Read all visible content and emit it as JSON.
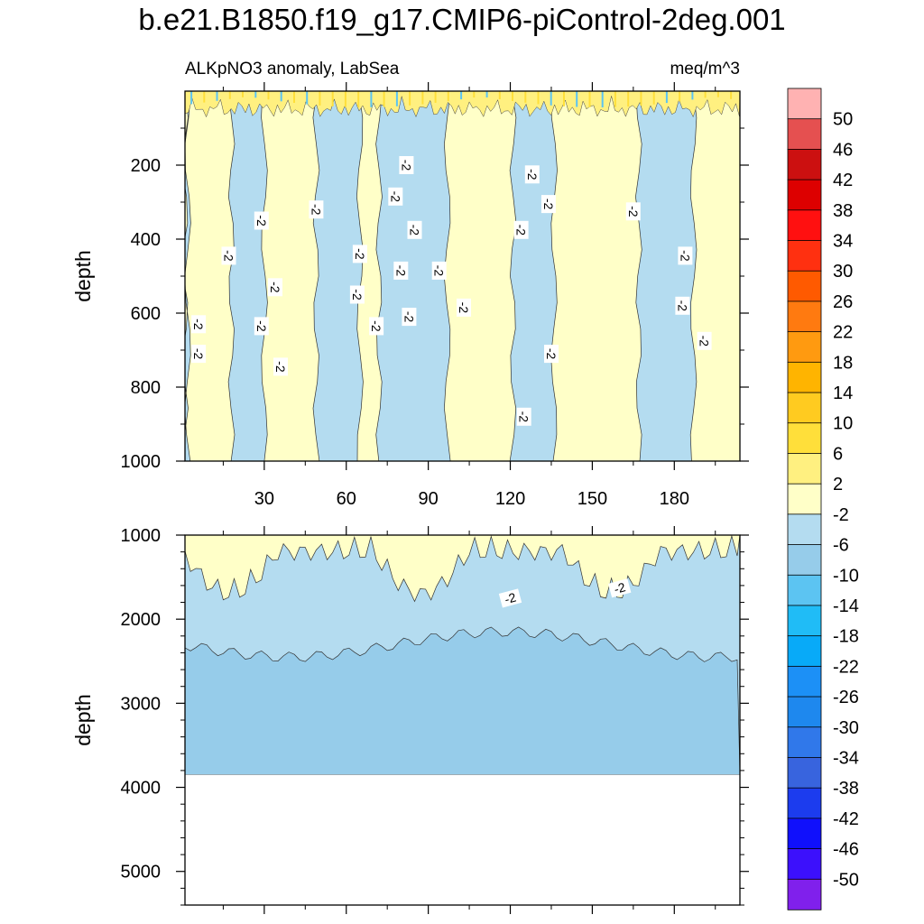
{
  "figure": {
    "title": "b.e21.B1850.f19_g17.CMIP6-piControl-2deg.001",
    "subtitle_left": "ALKpNO3 anomaly, LabSea",
    "subtitle_right": "meq/m^3"
  },
  "chart_data": [
    {
      "type": "heatmap",
      "panel": "upper",
      "ylabel": "depth",
      "xlim": [
        1,
        204
      ],
      "ylim": [
        1000,
        0
      ],
      "x_ticks": [
        30,
        60,
        90,
        120,
        150,
        180
      ],
      "y_ticks": [
        200,
        400,
        600,
        800,
        1000
      ],
      "dominant_levels": [
        "2 to -2",
        "-2 to -6"
      ],
      "bands": [
        {
          "x": [
            1,
            2
          ],
          "level": "-2 to -6"
        },
        {
          "x": [
            2,
            18
          ],
          "level": "2 to -2"
        },
        {
          "x": [
            18,
            30
          ],
          "level": "-2 to -6"
        },
        {
          "x": [
            30,
            49
          ],
          "level": "2 to -2"
        },
        {
          "x": [
            49,
            65
          ],
          "level": "-2 to -6"
        },
        {
          "x": [
            65,
            72
          ],
          "level": "2 to -2"
        },
        {
          "x": [
            72,
            97
          ],
          "level": "-2 to -6"
        },
        {
          "x": [
            97,
            121
          ],
          "level": "2 to -2"
        },
        {
          "x": [
            121,
            136
          ],
          "level": "-2 to -6"
        },
        {
          "x": [
            136,
            167
          ],
          "level": "2 to -2"
        },
        {
          "x": [
            167,
            187
          ],
          "level": "-2 to -6"
        },
        {
          "x": [
            187,
            204
          ],
          "level": "2 to -2"
        }
      ],
      "contour_labels": [
        {
          "x": 6,
          "y": 630,
          "text": "-2"
        },
        {
          "x": 6,
          "y": 710,
          "text": "-2"
        },
        {
          "x": 17,
          "y": 445,
          "text": "-2"
        },
        {
          "x": 29,
          "y": 350,
          "text": "-2"
        },
        {
          "x": 29,
          "y": 635,
          "text": "-2"
        },
        {
          "x": 34,
          "y": 530,
          "text": "-2"
        },
        {
          "x": 36,
          "y": 745,
          "text": "-2"
        },
        {
          "x": 49,
          "y": 320,
          "text": "-2"
        },
        {
          "x": 65,
          "y": 440,
          "text": "-2"
        },
        {
          "x": 64,
          "y": 550,
          "text": "-2"
        },
        {
          "x": 71,
          "y": 635,
          "text": "-2"
        },
        {
          "x": 78,
          "y": 285,
          "text": "-2"
        },
        {
          "x": 80,
          "y": 485,
          "text": "-2"
        },
        {
          "x": 82,
          "y": 200,
          "text": "-2"
        },
        {
          "x": 83,
          "y": 610,
          "text": "-2"
        },
        {
          "x": 85,
          "y": 375,
          "text": "-2"
        },
        {
          "x": 94,
          "y": 485,
          "text": "-2"
        },
        {
          "x": 103,
          "y": 585,
          "text": "-2"
        },
        {
          "x": 124,
          "y": 375,
          "text": "-2"
        },
        {
          "x": 128,
          "y": 225,
          "text": "-2"
        },
        {
          "x": 134,
          "y": 305,
          "text": "-2"
        },
        {
          "x": 135,
          "y": 710,
          "text": "-2"
        },
        {
          "x": 125,
          "y": 880,
          "text": "-2"
        },
        {
          "x": 165,
          "y": 325,
          "text": "-2"
        },
        {
          "x": 184,
          "y": 445,
          "text": "-2"
        },
        {
          "x": 183,
          "y": 580,
          "text": "-2"
        },
        {
          "x": 191,
          "y": 675,
          "text": "-2"
        }
      ]
    },
    {
      "type": "heatmap",
      "panel": "lower",
      "ylabel": "depth",
      "xlim": [
        1,
        204
      ],
      "ylim": [
        5400,
        1000
      ],
      "y_ticks": [
        1000,
        2000,
        3000,
        4000,
        5000
      ],
      "missing_below_depth": 3850,
      "regions": [
        {
          "level": "2 to -2",
          "depth_range": [
            1000,
            2200
          ],
          "note": "upper patches"
        },
        {
          "level": "-2 to -6",
          "depth_range": [
            1000,
            3850
          ]
        },
        {
          "level": "-6 to -10",
          "depth_range": [
            2050,
            3850
          ]
        }
      ],
      "contour_labels": [
        {
          "x": 120,
          "y": 1750,
          "text": "-2"
        },
        {
          "x": 160,
          "y": 1630,
          "text": "-2"
        }
      ]
    }
  ],
  "colorbar": {
    "levels": [
      "50",
      "46",
      "42",
      "38",
      "34",
      "30",
      "26",
      "22",
      "18",
      "14",
      "10",
      "6",
      "2",
      "-2",
      "-6",
      "-10",
      "-14",
      "-18",
      "-22",
      "-26",
      "-30",
      "-34",
      "-38",
      "-42",
      "-46",
      "-50"
    ],
    "colors": [
      "#FFB2B2",
      "#E55050",
      "#CC1010",
      "#DD0000",
      "#FF1010",
      "#FF3010",
      "#FF5A00",
      "#FF7A10",
      "#FF9A10",
      "#FFB400",
      "#FFCB20",
      "#FFDF3A",
      "#FFF080",
      "#FFFFC8",
      "#B4DCF0",
      "#96CCEA",
      "#5CC4F2",
      "#20BCF6",
      "#08AAF8",
      "#1C90F6",
      "#1E88EE",
      "#3078EA",
      "#3864DE",
      "#1C3CEE",
      "#1010FC",
      "#3C10FC",
      "#8020EC"
    ]
  }
}
